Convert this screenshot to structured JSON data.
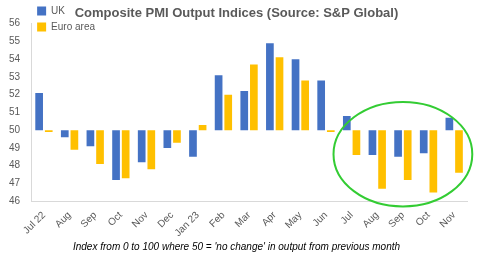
{
  "chart_data": {
    "type": "bar",
    "title": "Composite PMI Output Indices (Source: S&P Global)",
    "footnote": "Index from 0 to 100 where 50 = 'no change' in output from previous month",
    "categories": [
      "Jul 22",
      "Aug",
      "Sep",
      "Oct",
      "Nov",
      "Dec",
      "Jan 23",
      "Feb",
      "Mar",
      "Apr",
      "May",
      "Jun",
      "Jul",
      "Aug",
      "Sep",
      "Oct",
      "Nov"
    ],
    "series": [
      {
        "name": "UK",
        "color": "#4472c4",
        "values": [
          52.1,
          49.6,
          49.1,
          47.2,
          48.2,
          49.0,
          48.5,
          53.1,
          52.2,
          54.9,
          54.0,
          52.8,
          50.8,
          48.6,
          48.5,
          48.7,
          50.7
        ]
      },
      {
        "name": "Euro area",
        "color": "#ffc000",
        "values": [
          49.9,
          48.9,
          48.1,
          47.3,
          47.8,
          49.3,
          50.3,
          52.0,
          53.7,
          54.1,
          52.8,
          49.9,
          48.6,
          46.7,
          47.2,
          46.5,
          47.6
        ]
      }
    ],
    "ylim": [
      46,
      56
    ],
    "yticks": [
      46,
      47,
      48,
      49,
      50,
      51,
      52,
      53,
      54,
      55,
      56
    ],
    "grid": false,
    "legend": "upper left"
  }
}
